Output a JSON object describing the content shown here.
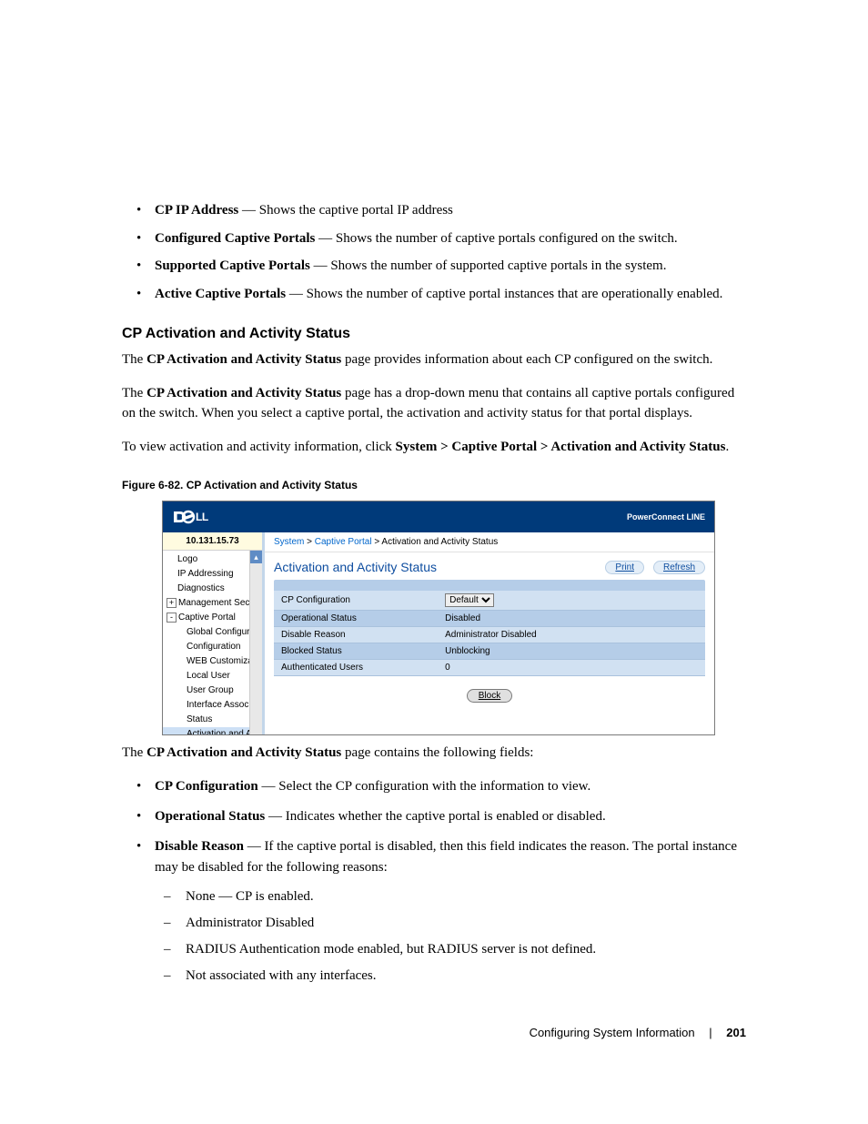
{
  "top_bullets": [
    {
      "term": "CP IP Address",
      "desc": "Shows the captive portal IP address"
    },
    {
      "term": "Configured Captive Portals",
      "desc": "Shows the number of captive portals configured on the switch."
    },
    {
      "term": "Supported Captive Portals",
      "desc": "Shows the number of supported captive portals in the system."
    },
    {
      "term": "Active Captive Portals",
      "desc": "Shows the number of captive portal instances that are operationally enabled."
    }
  ],
  "section_heading": "CP Activation and Activity Status",
  "para1_a": "The ",
  "para1_bold": "CP Activation and Activity Status",
  "para1_b": " page provides information about each CP configured on the switch.",
  "para2_a": "The ",
  "para2_bold": "CP Activation and Activity Status",
  "para2_b": " page has a drop-down menu that contains all captive portals configured on the switch. When you select a captive portal, the activation and activity status for that portal displays.",
  "para3_a": "To view activation and activity information, click ",
  "para3_bold": "System > Captive Portal > Activation and Activity Status",
  "para3_b": ".",
  "figure_caption": "Figure 6-82.    CP Activation and Activity Status",
  "screenshot": {
    "brand_right": "PowerConnect LINE",
    "nav_ip": "10.131.15.73",
    "nav_items": [
      {
        "text": "Logo",
        "indent": 16,
        "glyph": ""
      },
      {
        "text": "IP Addressing",
        "indent": 16,
        "glyph": ""
      },
      {
        "text": "Diagnostics",
        "indent": 16,
        "glyph": ""
      },
      {
        "text": "Management Securit",
        "indent": 4,
        "glyph": "+"
      },
      {
        "text": "Captive Portal",
        "indent": 4,
        "glyph": "-"
      },
      {
        "text": "Global Configurati",
        "indent": 26,
        "glyph": ""
      },
      {
        "text": "Configuration",
        "indent": 26,
        "glyph": ""
      },
      {
        "text": "WEB Customizat",
        "indent": 26,
        "glyph": ""
      },
      {
        "text": "Local User",
        "indent": 26,
        "glyph": ""
      },
      {
        "text": "User Group",
        "indent": 26,
        "glyph": ""
      },
      {
        "text": "Interface Associat",
        "indent": 26,
        "glyph": ""
      },
      {
        "text": "Status",
        "indent": 26,
        "glyph": ""
      },
      {
        "text": "Activation and Ac",
        "indent": 26,
        "glyph": "",
        "selected": true
      }
    ],
    "breadcrumb": {
      "a": "System",
      "b": "Captive Portal",
      "c": "Activation and Activity Status",
      "sep": " > "
    },
    "main_title": "Activation and Activity Status",
    "print_label": "Print",
    "refresh_label": "Refresh",
    "rows": [
      {
        "label": "CP Configuration",
        "value_dropdown": "Default"
      },
      {
        "label": "Operational Status",
        "value": "Disabled"
      },
      {
        "label": "Disable Reason",
        "value": "Administrator Disabled"
      },
      {
        "label": "Blocked Status",
        "value": "Unblocking"
      },
      {
        "label": "Authenticated Users",
        "value": "0"
      }
    ],
    "block_button": "Block"
  },
  "after_fig_a": "The ",
  "after_fig_bold": "CP Activation and Activity Status",
  "after_fig_b": " page contains the following fields:",
  "field_bullets": [
    {
      "term": "CP Configuration",
      "desc": "Select the CP configuration with the information to view."
    },
    {
      "term": "Operational Status",
      "desc": "Indicates whether the captive portal is enabled or disabled."
    },
    {
      "term": "Disable Reason",
      "desc": "If the captive portal is disabled, then this field indicates the reason. The portal instance may be disabled for the following reasons:"
    }
  ],
  "sub_dashes": [
    "None — CP is enabled.",
    "Administrator Disabled",
    "RADIUS Authentication mode enabled, but RADIUS server is not defined.",
    "Not associated with any interfaces."
  ],
  "footer": {
    "section": "Configuring System Information",
    "page": "201"
  },
  "colors": {
    "dell_blue": "#003a7a",
    "link_blue": "#0066cc",
    "title_blue": "#0f4ea0",
    "row_light": "#d1e1f2",
    "row_dark": "#b5cde8"
  }
}
